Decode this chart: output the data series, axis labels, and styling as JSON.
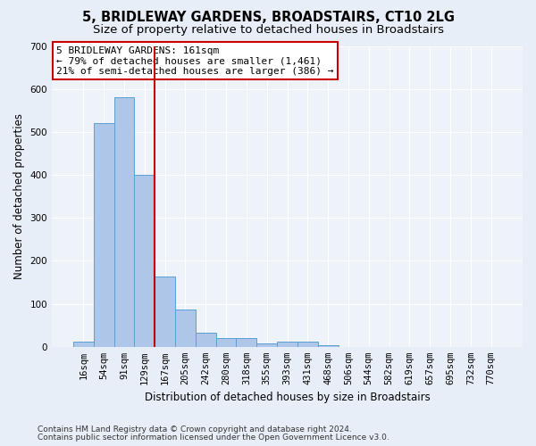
{
  "title1": "5, BRIDLEWAY GARDENS, BROADSTAIRS, CT10 2LG",
  "title2": "Size of property relative to detached houses in Broadstairs",
  "xlabel": "Distribution of detached houses by size in Broadstairs",
  "ylabel": "Number of detached properties",
  "bar_labels": [
    "16sqm",
    "54sqm",
    "91sqm",
    "129sqm",
    "167sqm",
    "205sqm",
    "242sqm",
    "280sqm",
    "318sqm",
    "355sqm",
    "393sqm",
    "431sqm",
    "468sqm",
    "506sqm",
    "544sqm",
    "582sqm",
    "619sqm",
    "657sqm",
    "695sqm",
    "732sqm",
    "770sqm"
  ],
  "bar_values": [
    13,
    520,
    580,
    400,
    163,
    87,
    32,
    20,
    20,
    8,
    12,
    12,
    3,
    0,
    0,
    0,
    0,
    0,
    0,
    0,
    0
  ],
  "bar_color": "#aec6e8",
  "bar_edge_color": "#5a9fd4",
  "vline_x": 3.5,
  "vline_color": "#cc0000",
  "annotation_text": "5 BRIDLEWAY GARDENS: 161sqm\n← 79% of detached houses are smaller (1,461)\n21% of semi-detached houses are larger (386) →",
  "annotation_box_color": "#ffffff",
  "annotation_box_edge": "#cc0000",
  "ylim": [
    0,
    700
  ],
  "yticks": [
    0,
    100,
    200,
    300,
    400,
    500,
    600,
    700
  ],
  "footer1": "Contains HM Land Registry data © Crown copyright and database right 2024.",
  "footer2": "Contains public sector information licensed under the Open Government Licence v3.0.",
  "bg_color": "#e8eef7",
  "plot_bg_color": "#eef2f9",
  "title1_fontsize": 10.5,
  "title2_fontsize": 9.5,
  "xlabel_fontsize": 8.5,
  "ylabel_fontsize": 8.5,
  "tick_fontsize": 7.5,
  "footer_fontsize": 6.5,
  "annot_fontsize": 8
}
